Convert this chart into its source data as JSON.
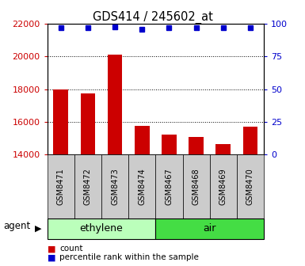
{
  "title": "GDS414 / 245602_at",
  "samples": [
    "GSM8471",
    "GSM8472",
    "GSM8473",
    "GSM8474",
    "GSM8467",
    "GSM8468",
    "GSM8469",
    "GSM8470"
  ],
  "counts": [
    18000,
    17750,
    20100,
    15750,
    15200,
    15050,
    14650,
    15700
  ],
  "percentile_ranks": [
    97,
    97,
    98,
    96,
    97,
    97,
    97,
    97
  ],
  "bar_color": "#cc0000",
  "dot_color": "#0000cc",
  "ylim_left": [
    14000,
    22000
  ],
  "ylim_right": [
    0,
    100
  ],
  "yticks_left": [
    14000,
    16000,
    18000,
    20000,
    22000
  ],
  "yticks_right": [
    0,
    25,
    50,
    75,
    100
  ],
  "groups": [
    {
      "label": "ethylene",
      "indices": [
        0,
        1,
        2,
        3
      ],
      "color": "#bbffbb"
    },
    {
      "label": "air",
      "indices": [
        4,
        5,
        6,
        7
      ],
      "color": "#44dd44"
    }
  ],
  "agent_label": "agent",
  "legend_items": [
    {
      "color": "#cc0000",
      "label": "count"
    },
    {
      "color": "#0000cc",
      "label": "percentile rank within the sample"
    }
  ],
  "background_color": "#ffffff",
  "tick_label_color_left": "#cc0000",
  "tick_label_color_right": "#0000cc",
  "bar_baseline": 14000,
  "xtick_gray": "#cccccc"
}
